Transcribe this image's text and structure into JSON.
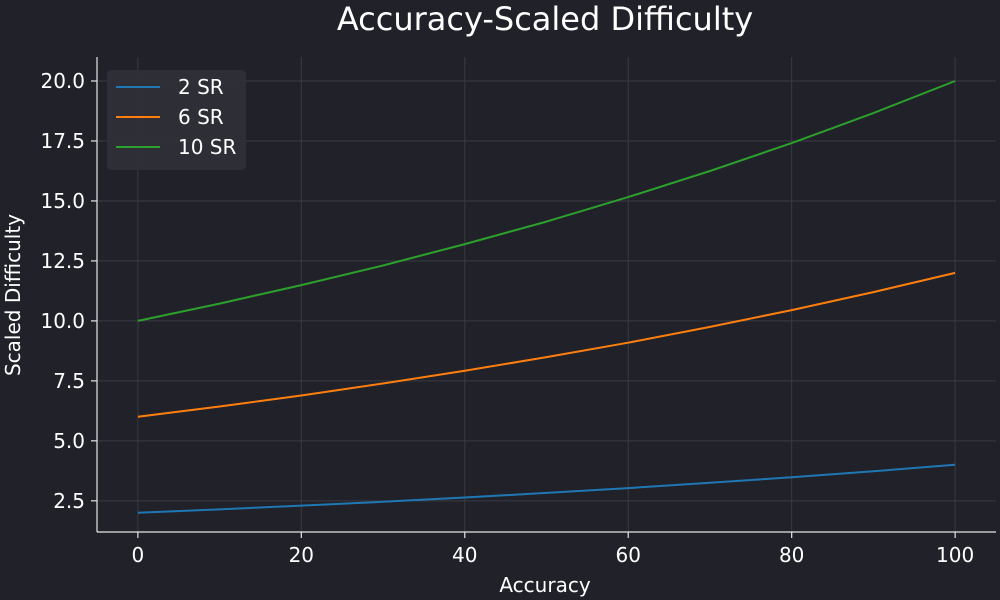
{
  "chart_data": {
    "type": "line",
    "title": "Accuracy-Scaled Difficulty",
    "xlabel": "Accuracy",
    "ylabel": "Scaled Difficulty",
    "xlim": [
      -5,
      105
    ],
    "ylim": [
      1.2,
      21.0
    ],
    "xticks": [
      0,
      20,
      40,
      60,
      80,
      100
    ],
    "yticks": [
      2.5,
      5.0,
      7.5,
      10.0,
      12.5,
      15.0,
      17.5,
      20.0
    ],
    "xtick_labels": [
      "0",
      "20",
      "40",
      "60",
      "80",
      "100"
    ],
    "ytick_labels": [
      "2.5",
      "5.0",
      "7.5",
      "10.0",
      "12.5",
      "15.0",
      "17.5",
      "20.0"
    ],
    "grid": true,
    "legend_position": "top-left",
    "x": [
      0,
      10,
      20,
      30,
      40,
      50,
      60,
      70,
      80,
      90,
      100
    ],
    "series": [
      {
        "name": "2 SR",
        "color": "#1f77b4",
        "values": [
          2.0,
          2.14,
          2.3,
          2.46,
          2.64,
          2.83,
          3.03,
          3.25,
          3.48,
          3.73,
          4.0
        ]
      },
      {
        "name": "6 SR",
        "color": "#ff7f0e",
        "values": [
          6.0,
          6.43,
          6.89,
          7.39,
          7.92,
          8.49,
          9.09,
          9.75,
          10.45,
          11.2,
          12.0
        ]
      },
      {
        "name": "10 SR",
        "color": "#2ca02c",
        "values": [
          10.0,
          10.72,
          11.49,
          12.31,
          13.2,
          14.14,
          15.16,
          16.25,
          17.41,
          18.66,
          20.0
        ]
      }
    ]
  },
  "colors": {
    "background": "#212129",
    "grid": "#3a3a44",
    "axis": "#e6e6e6",
    "text": "#ffffff",
    "legend_bg": "#2f2f38"
  }
}
